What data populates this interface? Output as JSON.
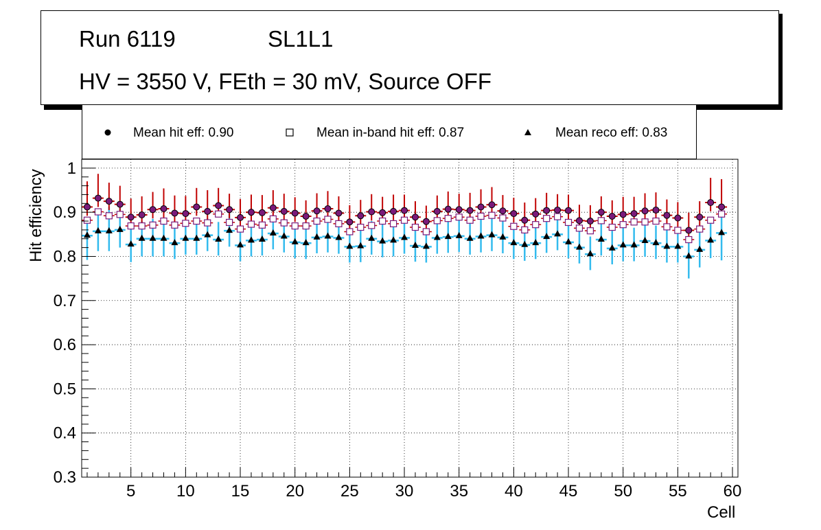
{
  "title_box": {
    "run": "Run 6119",
    "layer": "SL1L1",
    "conditions": "HV = 3550 V, FEth = 30 mV, Source OFF"
  },
  "colors": {
    "hit_error": "#c00000",
    "reco_error": "#33bbee",
    "hit_marker_fill": "#7a1a7a",
    "inband_marker_edge": "#7a1a7a",
    "axes": "#000000",
    "grid": "#000000"
  },
  "chart_data": {
    "type": "scatter",
    "title": "",
    "xlabel": "Cell",
    "ylabel": "Hit efficiency",
    "xlim": [
      0.5,
      60.5
    ],
    "ylim": [
      0.3,
      1.02
    ],
    "x_ticks": [
      5,
      10,
      15,
      20,
      25,
      30,
      35,
      40,
      45,
      50,
      55,
      60
    ],
    "y_ticks": [
      0.3,
      0.4,
      0.5,
      0.6,
      0.7,
      0.8,
      0.9,
      1
    ],
    "y_tick_labels": [
      "0.3",
      "0.4",
      "0.5",
      "0.6",
      "0.7",
      "0.8",
      "0.9",
      "1"
    ],
    "grid": true,
    "legend": [
      {
        "marker": "circle",
        "label": "Mean hit  eff: 0.90"
      },
      {
        "marker": "open-square",
        "label": "Mean in-band hit eff: 0.87"
      },
      {
        "marker": "triangle",
        "label": "Mean reco eff: 0.83"
      }
    ],
    "x": [
      1,
      2,
      3,
      4,
      5,
      6,
      7,
      8,
      9,
      10,
      11,
      12,
      13,
      14,
      15,
      16,
      17,
      18,
      19,
      20,
      21,
      22,
      23,
      24,
      25,
      26,
      27,
      28,
      29,
      30,
      31,
      32,
      33,
      34,
      35,
      36,
      37,
      38,
      39,
      40,
      41,
      42,
      43,
      44,
      45,
      46,
      47,
      48,
      49,
      50,
      51,
      52,
      53,
      54,
      55,
      56,
      57,
      58,
      59
    ],
    "series": [
      {
        "name": "Mean hit  eff",
        "marker": "circle",
        "values": [
          0.912,
          0.932,
          0.925,
          0.918,
          0.889,
          0.894,
          0.906,
          0.908,
          0.898,
          0.897,
          0.912,
          0.902,
          0.915,
          0.906,
          0.888,
          0.9,
          0.899,
          0.91,
          0.902,
          0.898,
          0.891,
          0.903,
          0.908,
          0.898,
          0.878,
          0.892,
          0.901,
          0.899,
          0.902,
          0.904,
          0.889,
          0.879,
          0.902,
          0.907,
          0.906,
          0.904,
          0.912,
          0.917,
          0.903,
          0.897,
          0.882,
          0.896,
          0.904,
          0.905,
          0.904,
          0.881,
          0.88,
          0.9,
          0.891,
          0.895,
          0.897,
          0.903,
          0.905,
          0.893,
          0.887,
          0.859,
          0.889,
          0.922,
          0.912
        ],
        "err_up": [
          0.058,
          0.055,
          0.042,
          0.042,
          0.042,
          0.042,
          0.04,
          0.046,
          0.04,
          0.04,
          0.043,
          0.048,
          0.04,
          0.036,
          0.042,
          0.04,
          0.04,
          0.04,
          0.04,
          0.036,
          0.036,
          0.04,
          0.04,
          0.038,
          0.038,
          0.036,
          0.04,
          0.036,
          0.038,
          0.036,
          0.036,
          0.036,
          0.036,
          0.04,
          0.036,
          0.04,
          0.04,
          0.04,
          0.036,
          0.036,
          0.04,
          0.036,
          0.04,
          0.036,
          0.036,
          0.036,
          0.036,
          0.036,
          0.036,
          0.04,
          0.038,
          0.04,
          0.04,
          0.036,
          0.036,
          0.04,
          0.036,
          0.056,
          0.063
        ],
        "err_down": [
          0.02,
          0.02,
          0.02,
          0.02,
          0.02,
          0.02,
          0.02,
          0.02,
          0.02,
          0.02,
          0.02,
          0.02,
          0.02,
          0.02,
          0.02,
          0.02,
          0.02,
          0.02,
          0.02,
          0.02,
          0.02,
          0.02,
          0.02,
          0.02,
          0.02,
          0.02,
          0.02,
          0.02,
          0.02,
          0.02,
          0.02,
          0.02,
          0.02,
          0.02,
          0.02,
          0.02,
          0.02,
          0.02,
          0.02,
          0.02,
          0.02,
          0.02,
          0.02,
          0.02,
          0.02,
          0.02,
          0.02,
          0.02,
          0.02,
          0.02,
          0.02,
          0.02,
          0.02,
          0.02,
          0.02,
          0.02,
          0.02,
          0.02,
          0.02
        ]
      },
      {
        "name": "Mean in-band hit eff",
        "marker": "open-square",
        "values": [
          0.882,
          0.901,
          0.892,
          0.895,
          0.869,
          0.869,
          0.871,
          0.88,
          0.871,
          0.875,
          0.88,
          0.876,
          0.896,
          0.877,
          0.862,
          0.873,
          0.871,
          0.885,
          0.876,
          0.869,
          0.869,
          0.88,
          0.884,
          0.874,
          0.856,
          0.866,
          0.87,
          0.88,
          0.874,
          0.882,
          0.866,
          0.856,
          0.881,
          0.886,
          0.889,
          0.882,
          0.891,
          0.893,
          0.887,
          0.868,
          0.86,
          0.872,
          0.886,
          0.89,
          0.877,
          0.864,
          0.858,
          0.881,
          0.866,
          0.872,
          0.878,
          0.878,
          0.88,
          0.867,
          0.859,
          0.838,
          0.862,
          0.882,
          0.896
        ],
        "err_up": [
          0.02,
          0.02,
          0.02,
          0.02,
          0.02,
          0.02,
          0.02,
          0.02,
          0.02,
          0.02,
          0.02,
          0.02,
          0.02,
          0.02,
          0.02,
          0.02,
          0.02,
          0.02,
          0.02,
          0.02,
          0.02,
          0.02,
          0.02,
          0.02,
          0.02,
          0.02,
          0.02,
          0.02,
          0.02,
          0.02,
          0.02,
          0.02,
          0.02,
          0.02,
          0.02,
          0.02,
          0.02,
          0.02,
          0.02,
          0.02,
          0.02,
          0.02,
          0.02,
          0.02,
          0.02,
          0.02,
          0.02,
          0.02,
          0.02,
          0.02,
          0.02,
          0.02,
          0.02,
          0.02,
          0.02,
          0.02,
          0.02,
          0.02,
          0.02
        ],
        "err_down": [
          0.02,
          0.02,
          0.02,
          0.02,
          0.02,
          0.02,
          0.02,
          0.02,
          0.02,
          0.02,
          0.02,
          0.02,
          0.02,
          0.02,
          0.02,
          0.02,
          0.02,
          0.02,
          0.02,
          0.02,
          0.02,
          0.02,
          0.02,
          0.02,
          0.02,
          0.02,
          0.02,
          0.02,
          0.02,
          0.02,
          0.02,
          0.02,
          0.02,
          0.02,
          0.02,
          0.02,
          0.02,
          0.02,
          0.02,
          0.02,
          0.02,
          0.02,
          0.02,
          0.02,
          0.02,
          0.02,
          0.02,
          0.02,
          0.02,
          0.02,
          0.02,
          0.02,
          0.02,
          0.02,
          0.02,
          0.02,
          0.02,
          0.02,
          0.02
        ]
      },
      {
        "name": "Mean reco eff",
        "marker": "triangle",
        "values": [
          0.847,
          0.857,
          0.857,
          0.86,
          0.827,
          0.84,
          0.84,
          0.84,
          0.83,
          0.84,
          0.84,
          0.848,
          0.838,
          0.858,
          0.825,
          0.836,
          0.838,
          0.852,
          0.845,
          0.832,
          0.83,
          0.843,
          0.845,
          0.842,
          0.822,
          0.823,
          0.84,
          0.834,
          0.836,
          0.842,
          0.824,
          0.822,
          0.842,
          0.844,
          0.846,
          0.84,
          0.845,
          0.848,
          0.843,
          0.83,
          0.826,
          0.83,
          0.844,
          0.85,
          0.832,
          0.82,
          0.805,
          0.838,
          0.818,
          0.825,
          0.825,
          0.835,
          0.83,
          0.822,
          0.822,
          0.8,
          0.815,
          0.836,
          0.853
        ],
        "err_up": [
          0.035,
          0.05,
          0.055,
          0.05,
          0.045,
          0.04,
          0.045,
          0.045,
          0.046,
          0.04,
          0.045,
          0.038,
          0.04,
          0.043,
          0.04,
          0.04,
          0.04,
          0.04,
          0.04,
          0.036,
          0.04,
          0.04,
          0.04,
          0.036,
          0.038,
          0.04,
          0.04,
          0.04,
          0.04,
          0.04,
          0.04,
          0.04,
          0.04,
          0.036,
          0.04,
          0.04,
          0.04,
          0.04,
          0.04,
          0.04,
          0.04,
          0.04,
          0.04,
          0.04,
          0.04,
          0.04,
          0.04,
          0.04,
          0.04,
          0.04,
          0.04,
          0.04,
          0.04,
          0.04,
          0.04,
          0.04,
          0.04,
          0.04,
          0.04
        ],
        "err_down": [
          0.055,
          0.045,
          0.045,
          0.04,
          0.04,
          0.04,
          0.04,
          0.04,
          0.036,
          0.036,
          0.036,
          0.036,
          0.036,
          0.036,
          0.036,
          0.036,
          0.036,
          0.036,
          0.036,
          0.036,
          0.036,
          0.036,
          0.036,
          0.036,
          0.036,
          0.036,
          0.036,
          0.036,
          0.036,
          0.036,
          0.036,
          0.036,
          0.036,
          0.036,
          0.036,
          0.036,
          0.036,
          0.036,
          0.036,
          0.036,
          0.036,
          0.036,
          0.036,
          0.036,
          0.036,
          0.036,
          0.036,
          0.036,
          0.036,
          0.036,
          0.036,
          0.036,
          0.036,
          0.036,
          0.036,
          0.05,
          0.04,
          0.04,
          0.062
        ]
      }
    ]
  }
}
